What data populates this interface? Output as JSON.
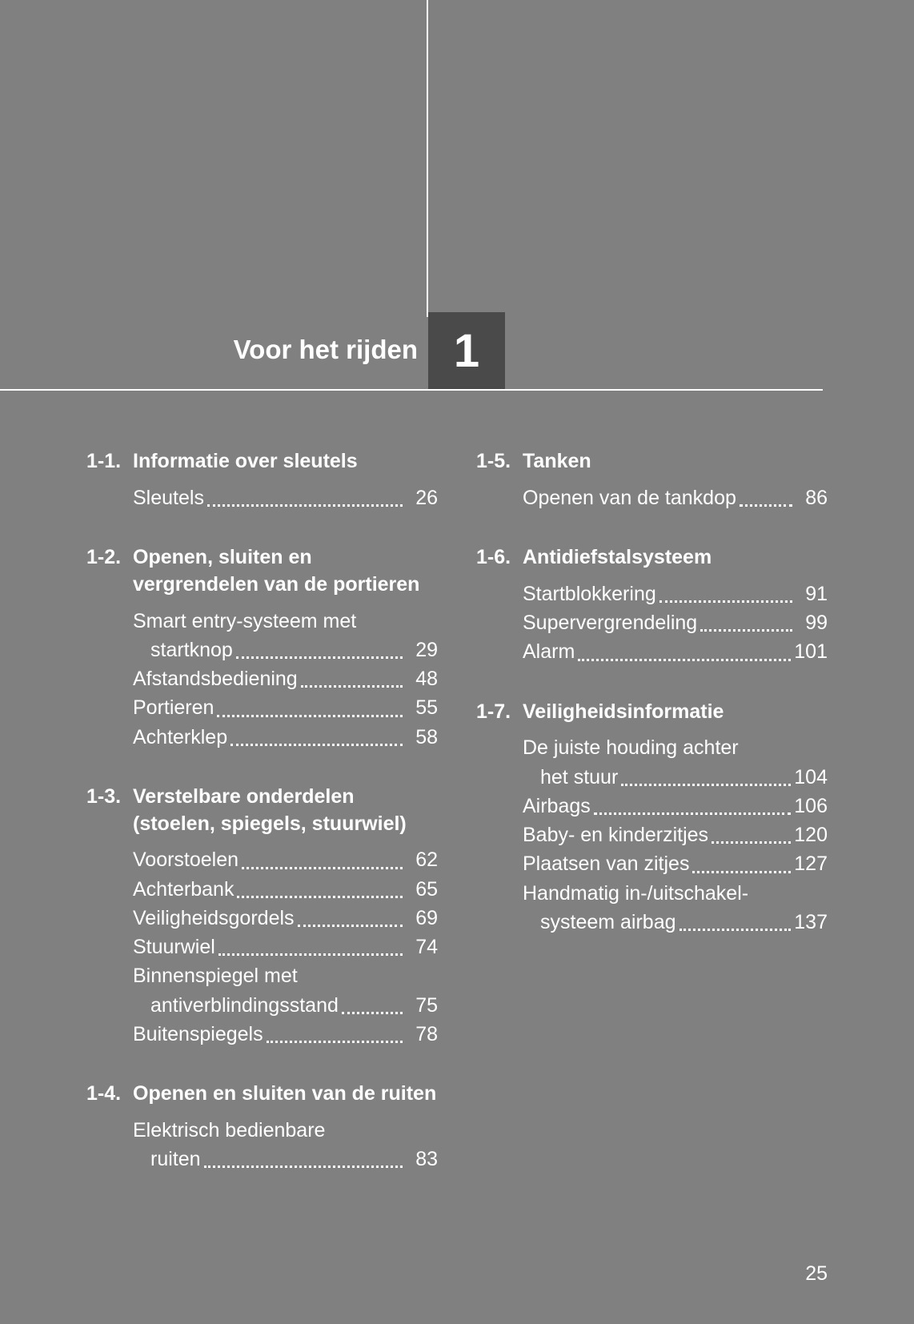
{
  "background_color": "#808080",
  "text_color": "#ffffff",
  "chapter_box_color": "#4a4a4a",
  "title": "Voor het rijden",
  "chapter_number": "1",
  "page_number": "25",
  "columns": [
    {
      "sections": [
        {
          "num": "1-1.",
          "title": "Informatie over sleutels",
          "entries": [
            {
              "label": "Sleutels",
              "page": "26"
            }
          ]
        },
        {
          "num": "1-2.",
          "title": "Openen, sluiten en vergrendelen van de portieren",
          "entries": [
            {
              "label": "Smart entry-systeem met",
              "cont": "startknop",
              "page": "29"
            },
            {
              "label": "Afstandsbediening",
              "page": "48"
            },
            {
              "label": "Portieren",
              "page": "55"
            },
            {
              "label": "Achterklep",
              "page": "58"
            }
          ]
        },
        {
          "num": "1-3.",
          "title": "Verstelbare onderdelen (stoelen, spiegels, stuurwiel)",
          "entries": [
            {
              "label": "Voorstoelen",
              "page": "62"
            },
            {
              "label": "Achterbank",
              "page": "65"
            },
            {
              "label": "Veiligheidsgordels",
              "page": "69"
            },
            {
              "label": "Stuurwiel",
              "page": "74"
            },
            {
              "label": "Binnenspiegel met",
              "cont": "antiverblindingsstand",
              "page": "75"
            },
            {
              "label": "Buitenspiegels",
              "page": "78"
            }
          ]
        },
        {
          "num": "1-4.",
          "title": "Openen en sluiten van de ruiten",
          "entries": [
            {
              "label": "Elektrisch bedienbare",
              "cont": "ruiten",
              "page": "83"
            }
          ]
        }
      ]
    },
    {
      "sections": [
        {
          "num": "1-5.",
          "title": "Tanken",
          "entries": [
            {
              "label": "Openen van de tankdop",
              "page": "86"
            }
          ]
        },
        {
          "num": "1-6.",
          "title": "Antidiefstalsysteem",
          "entries": [
            {
              "label": "Startblokkering",
              "page": "91"
            },
            {
              "label": "Supervergrendeling",
              "page": "99"
            },
            {
              "label": "Alarm",
              "page": "101"
            }
          ]
        },
        {
          "num": "1-7.",
          "title": "Veiligheidsinformatie",
          "entries": [
            {
              "label": "De juiste houding achter",
              "cont": "het stuur",
              "page": "104"
            },
            {
              "label": "Airbags",
              "page": "106"
            },
            {
              "label": "Baby- en kinderzitjes",
              "page": "120"
            },
            {
              "label": "Plaatsen van zitjes",
              "page": "127"
            },
            {
              "label": "Handmatig in-/uitschakel-",
              "cont": "systeem airbag",
              "page": "137"
            }
          ]
        }
      ]
    }
  ]
}
